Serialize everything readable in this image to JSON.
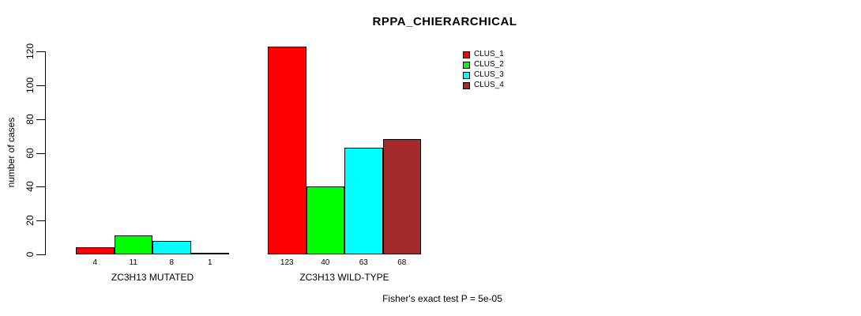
{
  "chart_data": {
    "type": "bar",
    "title": "RPPA_CHIERARCHICAL",
    "xlabel": "",
    "ylabel": "number of cases",
    "ylim": [
      0,
      120
    ],
    "yticks": [
      0,
      20,
      40,
      60,
      80,
      100,
      120
    ],
    "grid": false,
    "legend_position": "top-right",
    "bar_value_labels": true,
    "categories": [
      "ZC3H13 MUTATED",
      "ZC3H13 WILD-TYPE"
    ],
    "series": [
      {
        "name": "CLUS_1",
        "color": "#FF0000",
        "values": [
          4,
          123
        ]
      },
      {
        "name": "CLUS_2",
        "color": "#00FF00",
        "values": [
          11,
          40
        ]
      },
      {
        "name": "CLUS_3",
        "color": "#00FFFF",
        "values": [
          8,
          63
        ]
      },
      {
        "name": "CLUS_4",
        "color": "#A52A2A",
        "values": [
          1,
          68
        ]
      }
    ],
    "annotation": "Fisher's exact test P = 5e-05"
  }
}
